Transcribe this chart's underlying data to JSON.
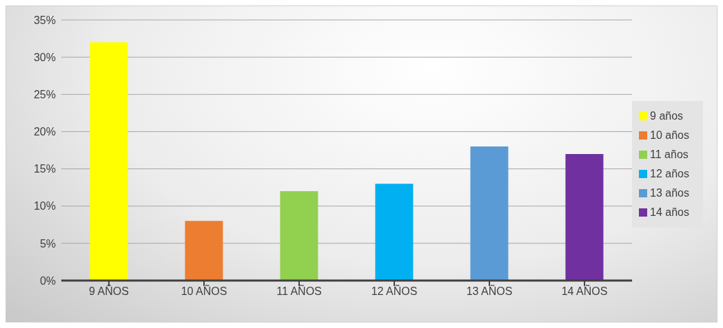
{
  "chart_data": {
    "type": "bar",
    "stacked": true,
    "categories": [
      "9 AÑOS",
      "10 AÑOS",
      "11 AÑOS",
      "12 AÑOS",
      "13 AÑOS",
      "14 AÑOS"
    ],
    "series": [
      {
        "name": "9 años",
        "color": "#ffff00",
        "values": [
          32,
          null,
          null,
          null,
          null,
          null
        ]
      },
      {
        "name": "10 años",
        "color": "#ed7d31",
        "values": [
          null,
          8,
          null,
          null,
          null,
          null
        ]
      },
      {
        "name": "11 años",
        "color": "#92d050",
        "values": [
          null,
          null,
          12,
          null,
          null,
          null
        ]
      },
      {
        "name": "12 años",
        "color": "#00b0f0",
        "values": [
          null,
          null,
          null,
          13,
          null,
          null
        ]
      },
      {
        "name": "13 años",
        "color": "#5b9bd5",
        "values": [
          null,
          null,
          null,
          null,
          18,
          null
        ]
      },
      {
        "name": "14 años",
        "color": "#7030a0",
        "values": [
          null,
          null,
          null,
          null,
          null,
          17
        ]
      }
    ],
    "ylim": [
      0,
      35
    ],
    "yticks": [
      {
        "value": 0,
        "label": "0%"
      },
      {
        "value": 5,
        "label": "5%"
      },
      {
        "value": 10,
        "label": "10%"
      },
      {
        "value": 15,
        "label": "15%"
      },
      {
        "value": 20,
        "label": "20%"
      },
      {
        "value": 25,
        "label": "25%"
      },
      {
        "value": 30,
        "label": "30%"
      },
      {
        "value": 35,
        "label": "35%"
      }
    ],
    "grid": "y",
    "legend": "right"
  }
}
